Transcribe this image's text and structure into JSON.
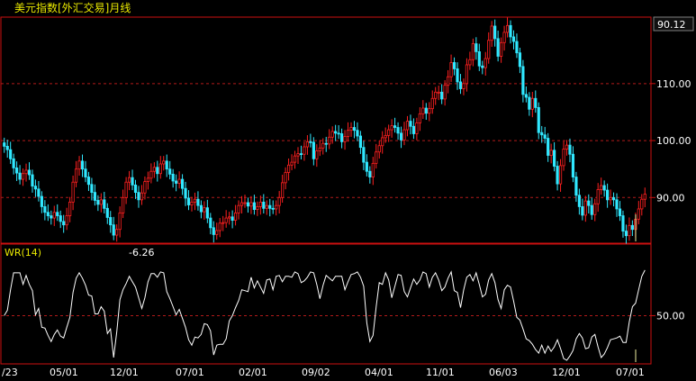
{
  "window": {
    "title": "美元指数[外汇交易]月线",
    "current_price_badge": "90.12"
  },
  "colors": {
    "background": "#000000",
    "frame_red": "#cc1010",
    "grid_red": "#b21a1a",
    "title_yellow": "#e8e800",
    "up_candle": "#ff2020",
    "down_candle": "#30e8ff",
    "indicator_line": "#ffffff",
    "axis_text": "#ffffff",
    "badge_bg": "#101010"
  },
  "chart_data": [
    {
      "type": "candlestick",
      "title": "美元指数[外汇交易]月线",
      "yaxis_ticks": [
        90.0,
        100.0,
        110.0
      ],
      "ylim": [
        82.3,
        121.2
      ],
      "grid": "horizontal-dashed",
      "legend": "none",
      "x_tick_labels": [
        "/23",
        "05/01",
        "12/01",
        "07/01",
        "02/01",
        "09/02",
        "04/01",
        "11/01",
        "06/03",
        "12/01",
        "07/01"
      ],
      "close": [
        99.0,
        98.4,
        96.8,
        95.2,
        94.3,
        93.2,
        94.2,
        94.8,
        94.0,
        92.0,
        91.5,
        90.2,
        88.4,
        87.4,
        86.8,
        86.4,
        87.4,
        86.8,
        85.8,
        85.2,
        86.8,
        89.2,
        92.7,
        95.0,
        96.4,
        95.0,
        93.6,
        92.3,
        90.9,
        89.5,
        88.8,
        89.6,
        88.1,
        86.5,
        85.2,
        83.4,
        84.4,
        87.3,
        90.0,
        92.7,
        93.5,
        92.2,
        90.9,
        89.6,
        90.8,
        92.8,
        93.4,
        94.6,
        95.3,
        94.2,
        95.9,
        96.4,
        95.0,
        94.1,
        92.9,
        92.5,
        93.2,
        91.6,
        89.9,
        88.7,
        89.2,
        89.7,
        88.6,
        87.5,
        88.2,
        86.4,
        84.7,
        83.5,
        84.2,
        85.5,
        85.6,
        86.4,
        86.6,
        86.0,
        87.3,
        88.6,
        89.1,
        89.1,
        88.5,
        89.1,
        87.9,
        88.4,
        89.2,
        88.1,
        88.6,
        88.1,
        88.0,
        88.6,
        90.0,
        92.6,
        94.4,
        95.7,
        96.2,
        97.3,
        97.7,
        97.6,
        98.9,
        99.8,
        99.7,
        96.8,
        98.2,
        98.7,
        99.5,
        99.4,
        100.6,
        101.6,
        101.3,
        101.2,
        99.8,
        100.7,
        101.8,
        102.3,
        101.8,
        100.8,
        98.8,
        96.2,
        94.6,
        93.6,
        96.0,
        98.0,
        99.1,
        100.5,
        100.9,
        101.9,
        102.6,
        102.3,
        101.3,
        100.1,
        101.9,
        103.4,
        102.5,
        101.2,
        103.1,
        104.7,
        105.7,
        104.8,
        105.6,
        107.4,
        108.5,
        108.5,
        107.3,
        109.7,
        111.2,
        113.7,
        112.6,
        110.3,
        109.1,
        110.0,
        113.3,
        114.2,
        117.0,
        115.6,
        113.1,
        112.8,
        114.4,
        117.6,
        120.1,
        117.9,
        114.8,
        117.2,
        119.0,
        120.2,
        118.2,
        117.4,
        115.4,
        113.0,
        108.1,
        107.6,
        105.5,
        107.4,
        105.8,
        101.4,
        101.0,
        100.4,
        97.4,
        98.3,
        95.5,
        92.4,
        95.6,
        98.5,
        99.2,
        97.6,
        93.6,
        90.4,
        88.4,
        86.9,
        89.4,
        88.6,
        87.0,
        88.9,
        91.4,
        92.1,
        91.3,
        89.6,
        90.0,
        89.6,
        88.0,
        86.8,
        84.1,
        83.3,
        85.1,
        84.4,
        86.2,
        88.0,
        89.7,
        90.6
      ],
      "last_close_label": "90.12"
    },
    {
      "type": "line",
      "title": "WR(14)",
      "current_value_label": "-6.26",
      "yaxis_ticks": [
        50.0
      ],
      "ylim": [
        -2,
        115
      ],
      "grid": "horizontal-dashed",
      "legend": "none",
      "values": [
        50,
        56,
        79,
        98,
        98,
        98,
        85,
        95,
        85,
        78,
        51,
        58,
        37,
        36,
        28,
        21,
        29,
        34,
        27,
        25,
        37,
        48,
        76,
        92,
        98,
        92,
        84,
        73,
        72,
        52,
        52,
        60,
        55,
        30,
        35,
        3,
        32,
        68,
        79,
        86,
        94,
        88,
        82,
        70,
        58,
        70,
        88,
        97,
        97,
        93,
        99,
        98,
        77,
        69,
        60,
        51,
        57,
        47,
        37,
        23,
        17,
        26,
        25,
        29,
        41,
        40,
        33,
        6,
        17,
        18,
        18,
        24,
        44,
        50,
        59,
        67,
        79,
        78,
        77,
        93,
        81,
        89,
        82,
        75,
        90,
        91,
        79,
        94,
        95,
        88,
        94,
        94,
        93,
        99,
        97,
        87,
        89,
        93,
        99,
        98,
        85,
        69,
        84,
        95,
        92,
        89,
        94,
        94,
        94,
        79,
        88,
        96,
        97,
        99,
        93,
        83,
        42,
        21,
        28,
        60,
        87,
        85,
        98,
        90,
        70,
        83,
        96,
        95,
        77,
        71,
        81,
        91,
        85,
        90,
        99,
        97,
        82,
        93,
        98,
        90,
        78,
        82,
        92,
        99,
        78,
        76,
        59,
        79,
        93,
        96,
        89,
        98,
        85,
        71,
        74,
        90,
        97,
        87,
        68,
        58,
        79,
        84,
        82,
        66,
        48,
        45,
        35,
        24,
        22,
        18,
        12,
        8,
        17,
        8,
        16,
        10,
        15,
        23,
        13,
        2,
        0,
        5,
        11,
        24,
        30,
        25,
        13,
        14,
        26,
        29,
        15,
        3,
        7,
        14,
        23,
        24,
        25,
        27,
        20,
        20,
        43,
        60,
        64,
        79,
        94,
        101
      ]
    }
  ]
}
